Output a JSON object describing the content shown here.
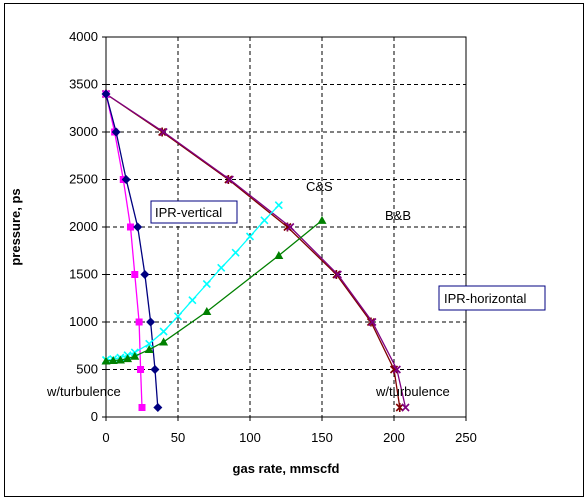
{
  "chart_data": {
    "type": "line",
    "xlabel": "gas rate, mmscfd",
    "ylabel": "pressure, ps",
    "xlim": [
      0,
      250
    ],
    "ylim": [
      0,
      4000
    ],
    "xticks": [
      "0",
      "50",
      "100",
      "150",
      "200",
      "250"
    ],
    "yticks": [
      "0",
      "500",
      "1000",
      "1500",
      "2000",
      "2500",
      "3000",
      "3500",
      "4000"
    ],
    "grid": true,
    "series": [
      {
        "color": "#800000",
        "marker": "star",
        "x": [
          0,
          39,
          85,
          126,
          160,
          184,
          200,
          204
        ],
        "y": [
          3400,
          3000,
          2500,
          2000,
          1500,
          1000,
          500,
          100
        ]
      },
      {
        "color": "#800080",
        "marker": "x",
        "x": [
          0,
          40,
          86,
          128,
          161,
          185,
          202,
          208
        ],
        "y": [
          3400,
          3000,
          2500,
          2000,
          1500,
          1000,
          500,
          100
        ]
      },
      {
        "color": "#ff00ff",
        "marker": "square",
        "x": [
          0,
          6,
          12,
          17,
          20,
          23,
          24,
          25
        ],
        "y": [
          3400,
          3000,
          2500,
          2000,
          1500,
          1000,
          500,
          100
        ]
      },
      {
        "color": "#000080",
        "marker": "diamond",
        "x": [
          0,
          7,
          14,
          22,
          27,
          31,
          34,
          36
        ],
        "y": [
          3400,
          3000,
          2500,
          2000,
          1500,
          1000,
          500,
          100
        ]
      },
      {
        "color": "#00ffff",
        "marker": "x",
        "x": [
          0,
          5,
          10,
          15,
          20,
          30,
          40,
          50,
          60,
          70,
          80,
          90,
          100,
          110,
          120
        ],
        "y": [
          600,
          610,
          625,
          650,
          680,
          770,
          900,
          1060,
          1230,
          1400,
          1570,
          1730,
          1900,
          2070,
          2230
        ]
      },
      {
        "color": "#008000",
        "marker": "triangle",
        "x": [
          0,
          5,
          10,
          15,
          20,
          30,
          40,
          70,
          120,
          150
        ],
        "y": [
          590,
          595,
          600,
          615,
          640,
          710,
          790,
          1110,
          1700,
          2070
        ]
      }
    ],
    "annotations": [
      {
        "text": "IPR-vertical",
        "boxed": true
      },
      {
        "text": "IPR-horizontal",
        "boxed": true
      },
      {
        "text": "C&S",
        "boxed": false
      },
      {
        "text": "B&B",
        "boxed": false
      },
      {
        "text": "w/turbulence",
        "boxed": false
      },
      {
        "text": "w/turbulence",
        "boxed": false
      }
    ]
  }
}
